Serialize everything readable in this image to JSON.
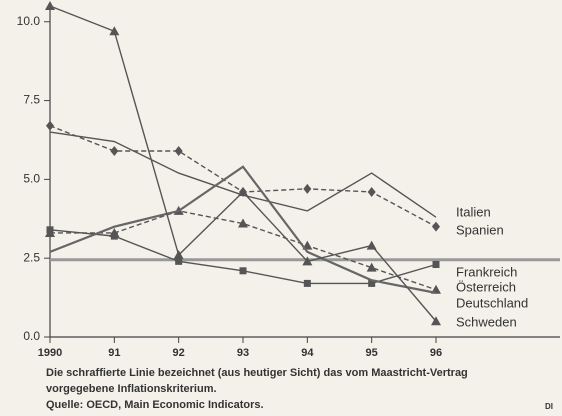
{
  "chart_data": {
    "type": "line",
    "x": [
      1990,
      1991,
      1992,
      1993,
      1994,
      1995,
      1996
    ],
    "xlim": [
      1990,
      1996
    ],
    "xticks": [
      1990,
      {
        "value": 1991,
        "label": "91"
      },
      {
        "value": 1992,
        "label": "92"
      },
      {
        "value": 1993,
        "label": "93"
      },
      {
        "value": 1994,
        "label": "94"
      },
      {
        "value": 1995,
        "label": "95"
      },
      {
        "value": 1996,
        "label": "96"
      }
    ],
    "ylim": [
      0,
      10.5
    ],
    "yticks": [
      {
        "value": 0,
        "label": "0.0"
      },
      2.5,
      {
        "value": 5,
        "label": "5.0"
      },
      7.5,
      {
        "value": 10,
        "label": "10.0"
      }
    ],
    "reference_line": 2.45,
    "series": [
      {
        "name": "Italien",
        "color": "#555",
        "dash": false,
        "marker": "none",
        "values": [
          6.5,
          6.2,
          5.2,
          4.5,
          4.0,
          5.2,
          3.8
        ]
      },
      {
        "name": "Spanien",
        "color": "#555",
        "dash": true,
        "marker": "diamond",
        "values": [
          6.7,
          5.9,
          5.9,
          4.6,
          4.7,
          4.6,
          3.5
        ]
      },
      {
        "name": "Frankreich",
        "color": "#555",
        "dash": false,
        "marker": "square",
        "values": [
          3.4,
          3.2,
          2.4,
          2.1,
          1.7,
          1.7,
          2.3
        ]
      },
      {
        "name": "Österreich",
        "color": "#555",
        "dash": true,
        "marker": "triangle",
        "values": [
          3.3,
          3.3,
          4.0,
          3.6,
          2.9,
          2.2,
          1.5
        ]
      },
      {
        "name": "Deutschland",
        "color": "#666",
        "dash": false,
        "marker": "none",
        "values": [
          2.7,
          3.5,
          4.0,
          5.4,
          2.7,
          1.8,
          1.4
        ]
      },
      {
        "name": "Schweden",
        "color": "#555",
        "dash": false,
        "marker": "triangle",
        "values": [
          10.5,
          9.7,
          2.6,
          4.6,
          2.4,
          2.9,
          0.5
        ]
      }
    ],
    "caption": [
      "Die schraffierte Linie bezeichnet (aus heutiger Sicht) das vom Maastricht-Vertrag",
      "vorgegebene Inflationskriterium.",
      "Quelle: OECD, Main Economic Indicators."
    ],
    "source_mark": "DI"
  }
}
